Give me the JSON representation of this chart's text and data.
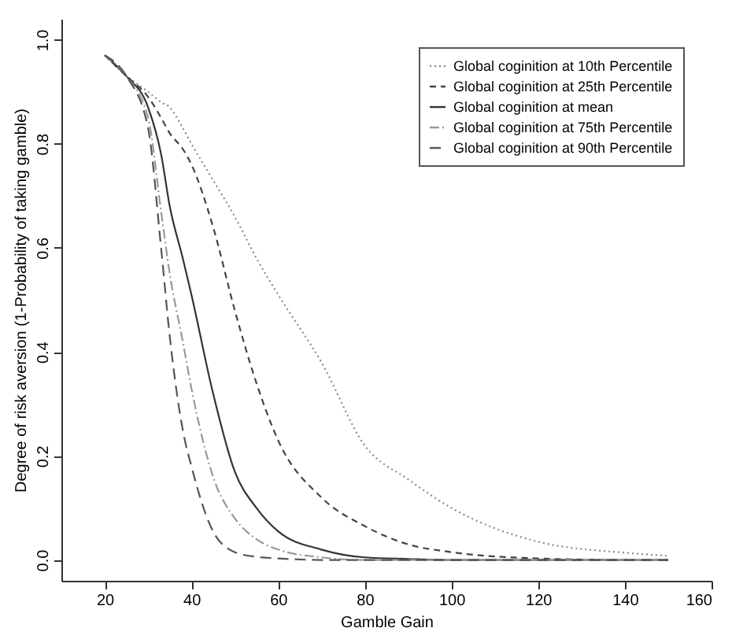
{
  "chart_data": {
    "type": "line",
    "xlabel": "Gamble Gain",
    "ylabel": "Degree of risk aversion (1-Probability of taking gamble)",
    "xlim": [
      10,
      160
    ],
    "xticks": [
      20,
      40,
      60,
      80,
      100,
      120,
      140,
      160
    ],
    "ylim": [
      -0.04,
      1.04
    ],
    "yticks": [
      {
        "value": 0,
        "label": "0.0"
      },
      0.2,
      0.4,
      0.6,
      0.8,
      {
        "value": 1,
        "label": "1.0"
      }
    ],
    "x": [
      20,
      25,
      30,
      33,
      35,
      38,
      40,
      45,
      50,
      55,
      60,
      70,
      80,
      90,
      100,
      120,
      140,
      150
    ],
    "grid": false,
    "legend": "top right",
    "marker": "none",
    "series": [
      {
        "name": "Global coginition at 10th Percentile",
        "color": "#8a8a8a",
        "line_style": "dotted",
        "values": [
          0.97,
          0.93,
          0.9,
          0.88,
          0.87,
          0.83,
          0.8,
          0.73,
          0.66,
          0.58,
          0.51,
          0.38,
          0.22,
          0.155,
          0.1,
          0.035,
          0.014,
          0.008
        ]
      },
      {
        "name": "Global coginition at 25th Percentile",
        "color": "#444444",
        "line_style": "dashed",
        "values": [
          0.97,
          0.93,
          0.89,
          0.85,
          0.82,
          0.79,
          0.76,
          0.64,
          0.48,
          0.34,
          0.23,
          0.12,
          0.065,
          0.03,
          0.015,
          0.003,
          0.0,
          0.0
        ]
      },
      {
        "name": "Global coginition at mean",
        "color": "#333333",
        "line_style": "solid",
        "values": [
          0.97,
          0.93,
          0.87,
          0.78,
          0.68,
          0.58,
          0.51,
          0.32,
          0.17,
          0.1,
          0.055,
          0.02,
          0.005,
          0.002,
          0.0,
          0.0,
          0.0,
          0.0
        ]
      },
      {
        "name": "Global coginition at 75th Percentile",
        "color": "#999999",
        "line_style": "dashdot",
        "values": [
          0.97,
          0.93,
          0.85,
          0.67,
          0.55,
          0.42,
          0.33,
          0.16,
          0.08,
          0.04,
          0.02,
          0.005,
          0.0,
          0.0,
          0.0,
          0.0,
          0.0,
          0.0
        ]
      },
      {
        "name": "Global coginition at 90th Percentile",
        "color": "#555555",
        "line_style": "longdash",
        "values": [
          0.97,
          0.93,
          0.83,
          0.6,
          0.43,
          0.25,
          0.18,
          0.055,
          0.015,
          0.006,
          0.003,
          0.0,
          0.0,
          0.0,
          0.0,
          0.0,
          0.0,
          0.0
        ]
      }
    ]
  }
}
